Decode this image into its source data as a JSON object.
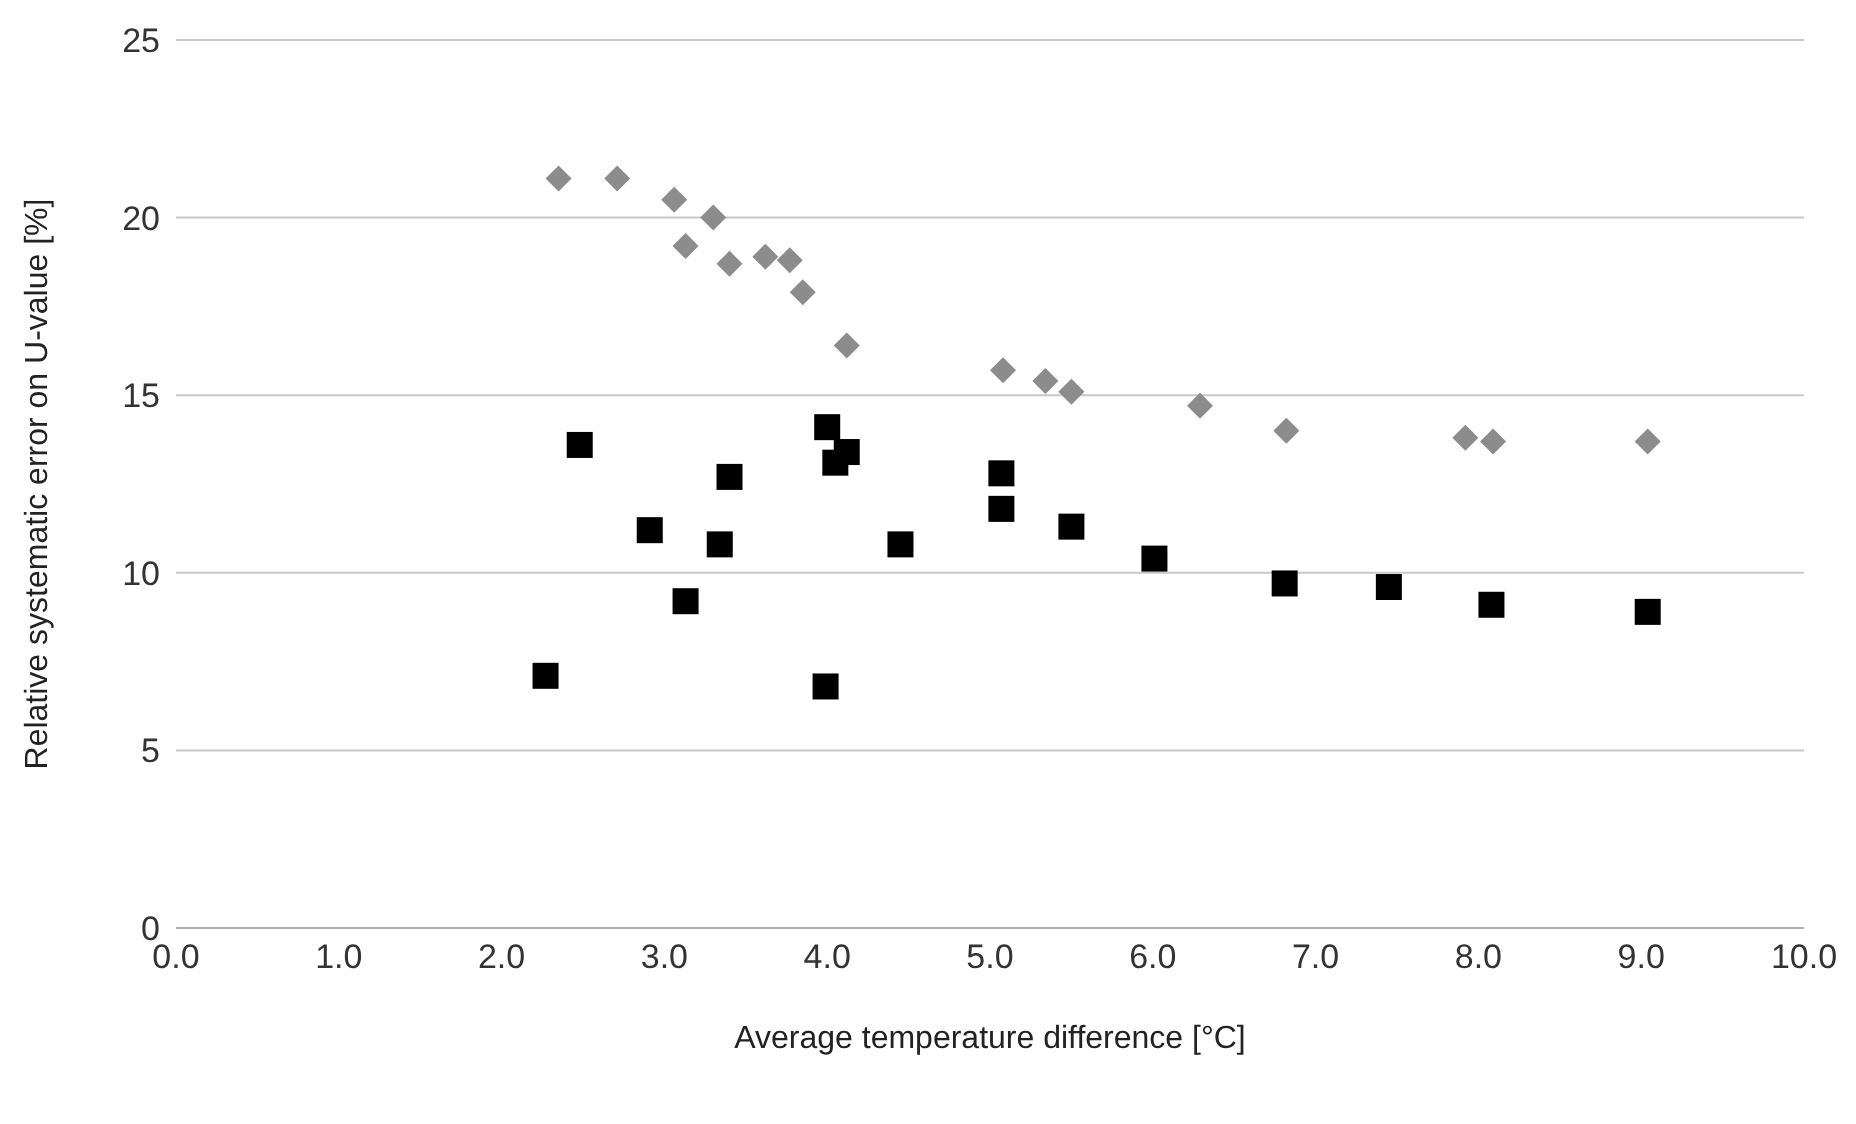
{
  "chart_data": {
    "type": "scatter",
    "xlabel": "Average temperature difference [°C]",
    "ylabel": "Relative systematic error on U-value [%]",
    "xlim": [
      0,
      10
    ],
    "xticks": [
      {
        "value": 0,
        "label": "0.0"
      },
      {
        "value": 1,
        "label": "1.0"
      },
      {
        "value": 2,
        "label": "2.0"
      },
      {
        "value": 3,
        "label": "3.0"
      },
      {
        "value": 4,
        "label": "4.0"
      },
      {
        "value": 5,
        "label": "5.0"
      },
      {
        "value": 6,
        "label": "6.0"
      },
      {
        "value": 7,
        "label": "7.0"
      },
      {
        "value": 8,
        "label": "8.0"
      },
      {
        "value": 9,
        "label": "9.0"
      },
      {
        "value": 10,
        "label": "10.0"
      }
    ],
    "ylim": [
      0,
      25
    ],
    "yticks": [
      0,
      5,
      10,
      15,
      20,
      25
    ],
    "grid": "y",
    "legend": false,
    "series": [
      {
        "color": "#8c8c8c",
        "marker": "diamond",
        "x": [
          2.35,
          2.71,
          3.06,
          3.3,
          3.13,
          3.4,
          3.62,
          3.77,
          3.85,
          4.12,
          5.08,
          5.34,
          5.5,
          6.29,
          6.82,
          7.92,
          8.09,
          9.04
        ],
        "values": [
          21.1,
          21.1,
          20.5,
          20,
          19.2,
          18.7,
          18.9,
          18.8,
          17.9,
          16.4,
          15.7,
          15.4,
          15.1,
          14.7,
          14,
          13.8,
          13.7,
          13.7
        ]
      },
      {
        "color": "#000000",
        "marker": "square",
        "x": [
          2.27,
          2.48,
          2.91,
          3.13,
          3.34,
          3.4,
          4,
          4.05,
          4.12,
          3.99,
          4.45,
          5.07,
          5.07,
          5.5,
          6.01,
          6.81,
          7.45,
          8.08,
          9.04
        ],
        "values": [
          7.1,
          13.6,
          11.2,
          9.2,
          10.8,
          12.7,
          14.1,
          13.1,
          13.4,
          6.8,
          10.8,
          12.8,
          11.8,
          11.3,
          10.4,
          9.7,
          9.6,
          9.1,
          8.9
        ]
      }
    ]
  }
}
